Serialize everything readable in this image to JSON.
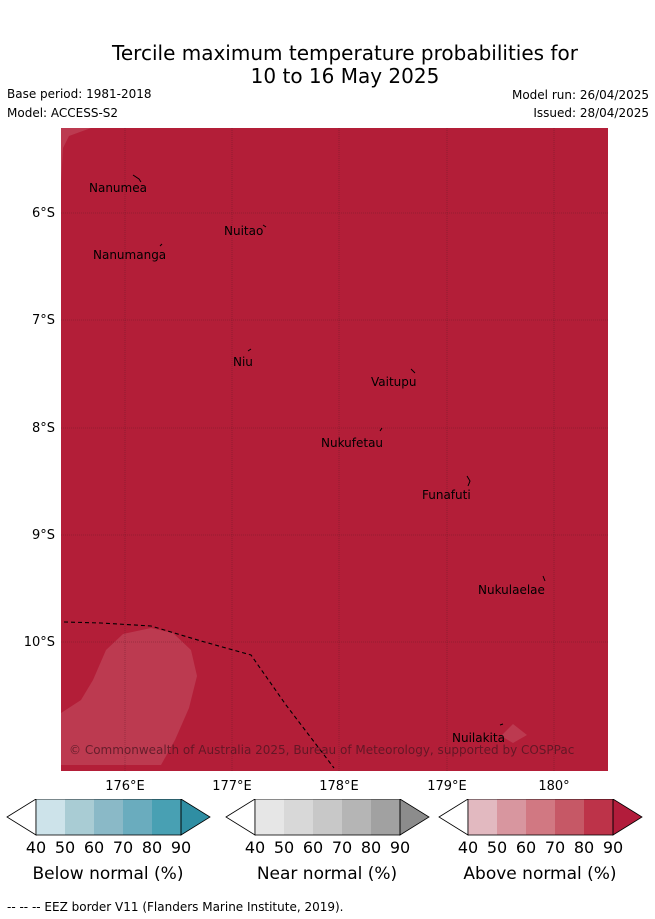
{
  "title_line1": "Tercile maximum temperature probabilities for",
  "title_line2": "10 to 16 May 2025",
  "base_period": "Base period: 1981-2018",
  "model": "Model: ACCESS-S2",
  "model_run": "Model run: 26/04/2025",
  "issued": "Issued: 28/04/2025",
  "map": {
    "fill_color": "#b31e38",
    "light_patch_color": "#bc3a50",
    "lat_ticks": [
      "6°S",
      "7°S",
      "8°S",
      "9°S",
      "10°S"
    ],
    "lon_ticks": [
      "176°E",
      "177°E",
      "178°E",
      "179°E",
      "180°"
    ],
    "places": [
      "Nanumea",
      "Nuitao",
      "Nanumanga",
      "Niu",
      "Vaitupu",
      "Nukufetau",
      "Funafuti",
      "Nukulaelae",
      "Nuilakita"
    ],
    "copyright": "© Commonwealth of Australia 2025, Bureau of Meteorology, supported by COSPPac"
  },
  "colorbars": [
    {
      "label": "Below normal (%)",
      "ticks": [
        "40",
        "50",
        "60",
        "70",
        "80",
        "90"
      ],
      "colors": [
        "#ffffff",
        "#cde3ea",
        "#a9ccd4",
        "#8ab9c7",
        "#6aacbe",
        "#48a0b3",
        "#2f8ea3"
      ]
    },
    {
      "label": "Near normal (%)",
      "ticks": [
        "40",
        "50",
        "60",
        "70",
        "80",
        "90"
      ],
      "colors": [
        "#ffffff",
        "#e6e6e6",
        "#d8d8d8",
        "#c8c8c8",
        "#b5b5b5",
        "#a1a1a1",
        "#8c8c8c"
      ]
    },
    {
      "label": "Above normal (%)",
      "ticks": [
        "40",
        "50",
        "60",
        "70",
        "80",
        "90"
      ],
      "colors": [
        "#ffffff",
        "#e2b9c0",
        "#d8969f",
        "#d17882",
        "#c65866",
        "#bd3349",
        "#b21c3b"
      ]
    }
  ],
  "footnote": "--  --  -- EEZ border V11 (Flanders Marine Institute, 2019)."
}
